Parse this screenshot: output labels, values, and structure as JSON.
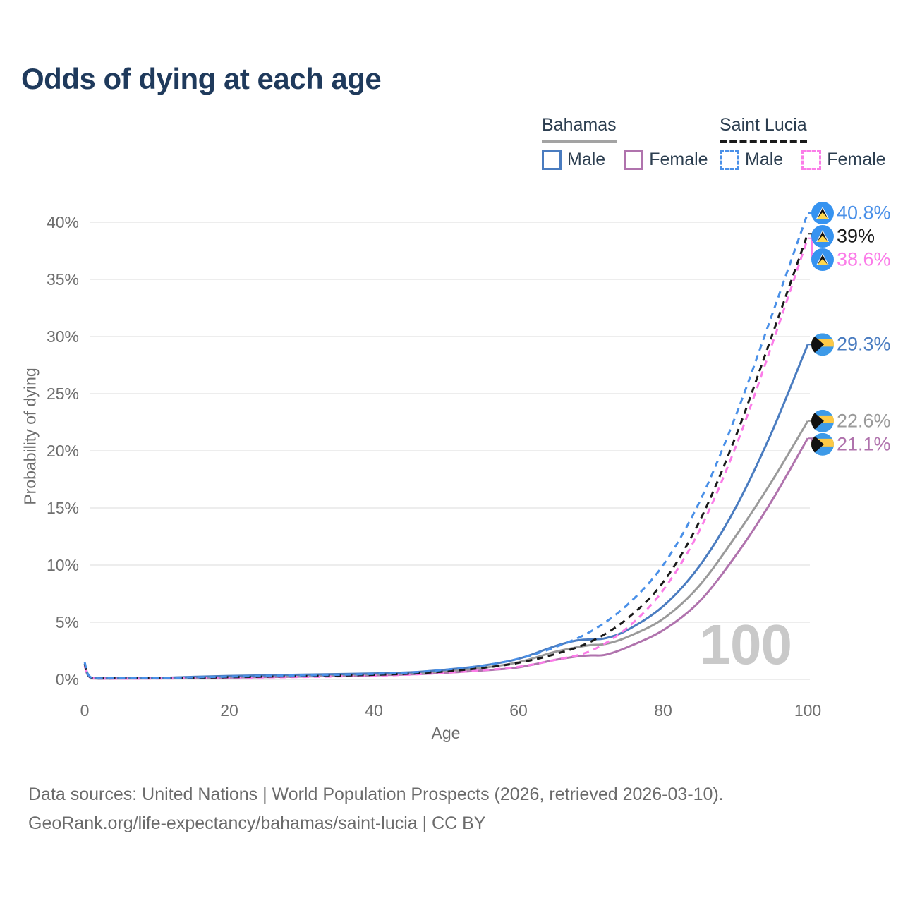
{
  "title": "Odds of dying at each age",
  "watermark": "100",
  "legend": {
    "groups": [
      {
        "name": "Bahamas",
        "line_style": "solid",
        "underline_color": "#a3a3a3",
        "items": [
          {
            "label": "Male",
            "color": "#4a7cc0"
          },
          {
            "label": "Female",
            "color": "#b073ad"
          }
        ]
      },
      {
        "name": "Saint Lucia",
        "line_style": "dashed",
        "underline_color": "#1a1a1a",
        "items": [
          {
            "label": "Male",
            "color": "#4a90e8"
          },
          {
            "label": "Female",
            "color": "#fb7ce8"
          }
        ]
      }
    ]
  },
  "axes": {
    "y_label": "Probability of dying",
    "x_label": "Age",
    "y_tick_labels": [
      "0%",
      "5%",
      "10%",
      "15%",
      "20%",
      "25%",
      "30%",
      "35%",
      "40%"
    ],
    "x_tick_labels": [
      "0",
      "20",
      "40",
      "60",
      "80",
      "100"
    ]
  },
  "footer": {
    "line1": "Data sources: United Nations | World Population Prospects (2026, retrieved 2026-03-10).",
    "line2": "GeoRank.org/life-expectancy/bahamas/saint-lucia | CC BY"
  },
  "chart_data": {
    "type": "line",
    "title": "Odds of dying at each age",
    "xlabel": "Age",
    "ylabel": "Probability of dying",
    "xlim": [
      0,
      100
    ],
    "ylim": [
      0,
      42
    ],
    "grid": "horizontal",
    "legend_position": "top-right",
    "y_ticks": [
      0,
      5,
      10,
      15,
      20,
      25,
      30,
      35,
      40
    ],
    "x_ticks": [
      0,
      20,
      40,
      60,
      80,
      100
    ],
    "hover_age_indicator": 100,
    "series": [
      {
        "name": "Bahamas Female",
        "country": "Bahamas",
        "sex": "Female",
        "color": "#b073ad",
        "dash": "solid",
        "flag": "bahamas",
        "end_label": "21.1%",
        "end_value": 21.1,
        "points": [
          [
            0,
            1.15
          ],
          [
            1,
            0.1
          ],
          [
            5,
            0.08
          ],
          [
            10,
            0.09
          ],
          [
            15,
            0.12
          ],
          [
            20,
            0.16
          ],
          [
            25,
            0.2
          ],
          [
            30,
            0.25
          ],
          [
            35,
            0.3
          ],
          [
            40,
            0.36
          ],
          [
            45,
            0.44
          ],
          [
            50,
            0.58
          ],
          [
            55,
            0.78
          ],
          [
            60,
            1.05
          ],
          [
            65,
            1.7
          ],
          [
            68,
            2.0
          ],
          [
            70,
            2.1
          ],
          [
            72,
            2.15
          ],
          [
            75,
            2.8
          ],
          [
            80,
            4.3
          ],
          [
            85,
            6.8
          ],
          [
            90,
            10.8
          ],
          [
            95,
            15.6
          ],
          [
            100,
            21.1
          ]
        ]
      },
      {
        "name": "Bahamas",
        "country": "Bahamas",
        "sex": "Both",
        "color": "#9a9a9a",
        "dash": "solid",
        "flag": "bahamas",
        "end_label": "22.6%",
        "end_value": 22.6,
        "points": [
          [
            0,
            1.3
          ],
          [
            1,
            0.11
          ],
          [
            5,
            0.09
          ],
          [
            10,
            0.11
          ],
          [
            15,
            0.18
          ],
          [
            20,
            0.25
          ],
          [
            25,
            0.3
          ],
          [
            30,
            0.35
          ],
          [
            35,
            0.39
          ],
          [
            40,
            0.44
          ],
          [
            45,
            0.53
          ],
          [
            50,
            0.72
          ],
          [
            55,
            1.0
          ],
          [
            60,
            1.5
          ],
          [
            65,
            2.4
          ],
          [
            68,
            2.8
          ],
          [
            70,
            3.0
          ],
          [
            72,
            3.1
          ],
          [
            75,
            3.7
          ],
          [
            80,
            5.3
          ],
          [
            85,
            8.2
          ],
          [
            90,
            12.5
          ],
          [
            95,
            17.3
          ],
          [
            100,
            22.6
          ]
        ]
      },
      {
        "name": "Bahamas Male",
        "country": "Bahamas",
        "sex": "Male",
        "color": "#4a7cc0",
        "dash": "solid",
        "flag": "bahamas",
        "end_label": "29.3%",
        "end_value": 29.3,
        "points": [
          [
            0,
            1.4
          ],
          [
            1,
            0.12
          ],
          [
            5,
            0.1
          ],
          [
            10,
            0.13
          ],
          [
            15,
            0.22
          ],
          [
            20,
            0.3
          ],
          [
            25,
            0.36
          ],
          [
            30,
            0.42
          ],
          [
            35,
            0.46
          ],
          [
            40,
            0.52
          ],
          [
            45,
            0.62
          ],
          [
            50,
            0.85
          ],
          [
            55,
            1.2
          ],
          [
            60,
            1.8
          ],
          [
            65,
            2.9
          ],
          [
            68,
            3.4
          ],
          [
            70,
            3.5
          ],
          [
            72,
            3.6
          ],
          [
            75,
            4.3
          ],
          [
            80,
            6.4
          ],
          [
            85,
            9.9
          ],
          [
            90,
            15.0
          ],
          [
            95,
            21.6
          ],
          [
            100,
            29.3
          ]
        ]
      },
      {
        "name": "Saint Lucia Female",
        "country": "Saint Lucia",
        "sex": "Female",
        "color": "#fb7ce8",
        "dash": "dashed",
        "flag": "saint-lucia",
        "end_label": "38.6%",
        "end_value": 38.6,
        "points": [
          [
            0,
            1.2
          ],
          [
            1,
            0.09
          ],
          [
            5,
            0.07
          ],
          [
            10,
            0.08
          ],
          [
            15,
            0.1
          ],
          [
            20,
            0.13
          ],
          [
            25,
            0.17
          ],
          [
            30,
            0.21
          ],
          [
            35,
            0.26
          ],
          [
            40,
            0.32
          ],
          [
            45,
            0.42
          ],
          [
            50,
            0.58
          ],
          [
            55,
            0.8
          ],
          [
            60,
            1.1
          ],
          [
            65,
            1.7
          ],
          [
            70,
            2.5
          ],
          [
            75,
            4.5
          ],
          [
            80,
            7.8
          ],
          [
            85,
            13.0
          ],
          [
            90,
            20.3
          ],
          [
            95,
            29.2
          ],
          [
            100,
            38.6
          ]
        ]
      },
      {
        "name": "Saint Lucia",
        "country": "Saint Lucia",
        "sex": "Both",
        "color": "#1a1a1a",
        "dash": "dashed",
        "flag": "saint-lucia",
        "end_label": "39%",
        "end_value": 39,
        "points": [
          [
            0,
            1.35
          ],
          [
            1,
            0.1
          ],
          [
            5,
            0.09
          ],
          [
            10,
            0.1
          ],
          [
            15,
            0.14
          ],
          [
            20,
            0.19
          ],
          [
            25,
            0.24
          ],
          [
            30,
            0.28
          ],
          [
            35,
            0.33
          ],
          [
            40,
            0.4
          ],
          [
            45,
            0.5
          ],
          [
            50,
            0.7
          ],
          [
            55,
            1.0
          ],
          [
            60,
            1.45
          ],
          [
            65,
            2.2
          ],
          [
            70,
            3.3
          ],
          [
            75,
            5.3
          ],
          [
            80,
            8.5
          ],
          [
            85,
            13.8
          ],
          [
            90,
            21.2
          ],
          [
            95,
            30.0
          ],
          [
            100,
            39.0
          ]
        ]
      },
      {
        "name": "Saint Lucia Male",
        "country": "Saint Lucia",
        "sex": "Male",
        "color": "#4a90e8",
        "dash": "dashed",
        "flag": "saint-lucia",
        "end_label": "40.8%",
        "end_value": 40.8,
        "points": [
          [
            0,
            1.5
          ],
          [
            1,
            0.12
          ],
          [
            5,
            0.1
          ],
          [
            10,
            0.12
          ],
          [
            15,
            0.18
          ],
          [
            20,
            0.24
          ],
          [
            25,
            0.3
          ],
          [
            30,
            0.35
          ],
          [
            35,
            0.4
          ],
          [
            40,
            0.48
          ],
          [
            45,
            0.6
          ],
          [
            50,
            0.85
          ],
          [
            55,
            1.2
          ],
          [
            60,
            1.8
          ],
          [
            65,
            2.8
          ],
          [
            70,
            4.2
          ],
          [
            75,
            6.5
          ],
          [
            80,
            10.0
          ],
          [
            85,
            15.5
          ],
          [
            90,
            23.0
          ],
          [
            95,
            31.8
          ],
          [
            100,
            40.8
          ]
        ]
      }
    ]
  }
}
